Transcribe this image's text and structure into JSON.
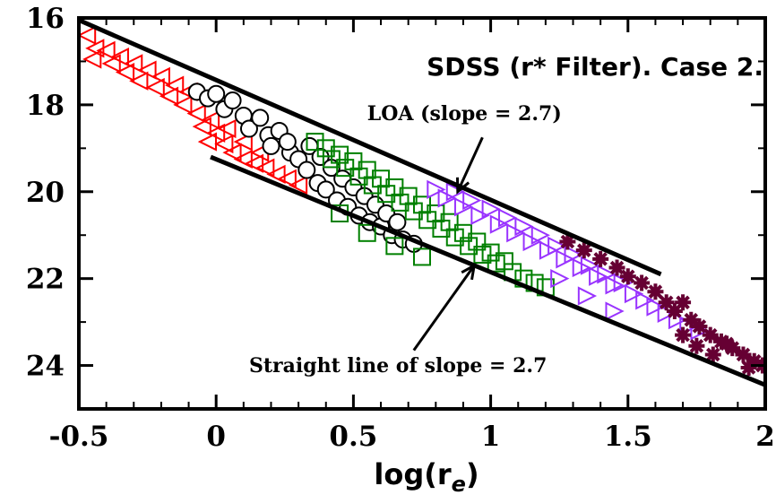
{
  "chart_data": {
    "type": "scatter",
    "title": "SDSS (r* Filter). Case 2.",
    "xlabel": "log(r",
    "xlabel_sub": "e",
    "xlabel_close": ")",
    "ylabel": "",
    "xlim": [
      -0.5,
      2.0
    ],
    "ylim": [
      16,
      25
    ],
    "y_inverted": true,
    "x_ticks": [
      -0.5,
      0,
      0.5,
      1,
      1.5,
      2
    ],
    "x_tick_labels": [
      "-0.5",
      "0",
      "0.5",
      "1",
      "1.5",
      "2"
    ],
    "y_ticks": [
      16,
      18,
      20,
      22,
      24
    ],
    "y_tick_labels": [
      "16",
      "18",
      "20",
      "22",
      "24"
    ],
    "grid": false,
    "lines": [
      {
        "label": "LOA (slope = 2.7)",
        "x": [
          -0.5,
          1.62
        ],
        "y": [
          16.05,
          21.9
        ]
      },
      {
        "label": "Straight line of slope = 2.7",
        "x": [
          -0.02,
          2.0
        ],
        "y": [
          19.2,
          24.45
        ]
      }
    ],
    "annotations": [
      {
        "text": "LOA (slope = 2.7)",
        "x": 0.55,
        "y": 18.35,
        "arrow_to": [
          0.88,
          20.0
        ]
      },
      {
        "text": "Straight line of slope = 2.7",
        "x": 0.12,
        "y": 24.15,
        "arrow_to": [
          0.94,
          21.7
        ]
      }
    ],
    "series": [
      {
        "marker": "triangle-left",
        "color": "#ff0000",
        "points": [
          [
            -0.47,
            16.4
          ],
          [
            -0.44,
            16.7
          ],
          [
            -0.45,
            16.95
          ],
          [
            -0.4,
            16.75
          ],
          [
            -0.38,
            17.05
          ],
          [
            -0.35,
            16.9
          ],
          [
            -0.33,
            17.25
          ],
          [
            -0.3,
            17.05
          ],
          [
            -0.28,
            17.45
          ],
          [
            -0.25,
            17.2
          ],
          [
            -0.22,
            17.6
          ],
          [
            -0.2,
            17.35
          ],
          [
            -0.17,
            17.8
          ],
          [
            -0.15,
            17.55
          ],
          [
            -0.12,
            18.0
          ],
          [
            -0.1,
            17.7
          ],
          [
            -0.07,
            18.2
          ],
          [
            -0.05,
            18.5
          ],
          [
            -0.02,
            18.35
          ],
          [
            0.0,
            18.65
          ],
          [
            0.03,
            18.9
          ],
          [
            -0.03,
            18.85
          ],
          [
            0.06,
            19.1
          ],
          [
            0.1,
            19.25
          ],
          [
            0.14,
            19.35
          ],
          [
            0.18,
            19.45
          ],
          [
            0.22,
            19.6
          ],
          [
            0.26,
            19.7
          ],
          [
            0.3,
            19.85
          ],
          [
            0.04,
            18.55
          ],
          [
            0.1,
            18.85
          ],
          [
            0.16,
            19.1
          ]
        ]
      },
      {
        "marker": "circle",
        "color": "#000000",
        "points": [
          [
            -0.07,
            17.7
          ],
          [
            -0.03,
            17.85
          ],
          [
            0.0,
            17.75
          ],
          [
            0.03,
            18.1
          ],
          [
            0.06,
            17.9
          ],
          [
            0.1,
            18.25
          ],
          [
            0.12,
            18.55
          ],
          [
            0.16,
            18.3
          ],
          [
            0.19,
            18.7
          ],
          [
            0.2,
            18.95
          ],
          [
            0.23,
            18.6
          ],
          [
            0.27,
            19.1
          ],
          [
            0.3,
            19.25
          ],
          [
            0.33,
            19.5
          ],
          [
            0.37,
            19.8
          ],
          [
            0.4,
            19.95
          ],
          [
            0.26,
            18.85
          ],
          [
            0.44,
            20.2
          ],
          [
            0.48,
            20.35
          ],
          [
            0.52,
            20.55
          ],
          [
            0.56,
            20.7
          ],
          [
            0.6,
            20.8
          ],
          [
            0.64,
            21.0
          ],
          [
            0.68,
            21.1
          ],
          [
            0.72,
            21.2
          ],
          [
            0.34,
            18.95
          ],
          [
            0.38,
            19.2
          ],
          [
            0.42,
            19.45
          ],
          [
            0.46,
            19.7
          ],
          [
            0.5,
            19.9
          ],
          [
            0.54,
            20.1
          ],
          [
            0.58,
            20.3
          ],
          [
            0.62,
            20.5
          ],
          [
            0.66,
            20.7
          ]
        ]
      },
      {
        "marker": "square",
        "color": "#008000",
        "points": [
          [
            0.36,
            18.85
          ],
          [
            0.4,
            19.0
          ],
          [
            0.42,
            19.25
          ],
          [
            0.45,
            19.15
          ],
          [
            0.47,
            19.45
          ],
          [
            0.5,
            19.3
          ],
          [
            0.52,
            19.65
          ],
          [
            0.55,
            19.5
          ],
          [
            0.57,
            19.85
          ],
          [
            0.6,
            19.7
          ],
          [
            0.62,
            20.05
          ],
          [
            0.65,
            19.9
          ],
          [
            0.67,
            20.25
          ],
          [
            0.7,
            20.1
          ],
          [
            0.72,
            20.45
          ],
          [
            0.75,
            20.3
          ],
          [
            0.77,
            20.65
          ],
          [
            0.8,
            20.5
          ],
          [
            0.82,
            20.85
          ],
          [
            0.85,
            20.7
          ],
          [
            0.87,
            21.05
          ],
          [
            0.9,
            20.95
          ],
          [
            0.92,
            21.25
          ],
          [
            0.95,
            21.15
          ],
          [
            0.97,
            21.45
          ],
          [
            1.0,
            21.4
          ],
          [
            1.02,
            21.65
          ],
          [
            1.05,
            21.6
          ],
          [
            1.08,
            21.85
          ],
          [
            1.12,
            22.0
          ],
          [
            1.16,
            22.1
          ],
          [
            1.2,
            22.2
          ],
          [
            0.45,
            20.5
          ],
          [
            0.55,
            20.95
          ],
          [
            0.65,
            21.25
          ],
          [
            0.75,
            21.5
          ]
        ]
      },
      {
        "marker": "triangle-right",
        "color": "#9933ff",
        "points": [
          [
            0.8,
            19.95
          ],
          [
            0.84,
            20.15
          ],
          [
            0.87,
            20.0
          ],
          [
            0.9,
            20.35
          ],
          [
            0.93,
            20.2
          ],
          [
            0.96,
            20.55
          ],
          [
            1.0,
            20.4
          ],
          [
            1.03,
            20.75
          ],
          [
            1.06,
            20.6
          ],
          [
            1.09,
            20.95
          ],
          [
            1.12,
            20.8
          ],
          [
            1.15,
            21.15
          ],
          [
            1.18,
            21.0
          ],
          [
            1.21,
            21.35
          ],
          [
            1.24,
            21.25
          ],
          [
            1.27,
            21.55
          ],
          [
            1.3,
            21.45
          ],
          [
            1.33,
            21.75
          ],
          [
            1.36,
            21.7
          ],
          [
            1.39,
            21.95
          ],
          [
            1.42,
            21.9
          ],
          [
            1.45,
            22.15
          ],
          [
            1.48,
            22.1
          ],
          [
            1.52,
            22.35
          ],
          [
            1.56,
            22.5
          ],
          [
            1.6,
            22.65
          ],
          [
            1.64,
            22.8
          ],
          [
            1.68,
            22.95
          ],
          [
            1.72,
            23.1
          ],
          [
            1.76,
            23.2
          ],
          [
            1.25,
            22.0
          ],
          [
            1.35,
            22.4
          ],
          [
            1.45,
            22.75
          ]
        ]
      },
      {
        "marker": "star",
        "color": "#660033",
        "points": [
          [
            1.28,
            21.15
          ],
          [
            1.34,
            21.35
          ],
          [
            1.4,
            21.55
          ],
          [
            1.46,
            21.75
          ],
          [
            1.5,
            21.95
          ],
          [
            1.55,
            22.1
          ],
          [
            1.6,
            22.3
          ],
          [
            1.64,
            22.55
          ],
          [
            1.67,
            22.75
          ],
          [
            1.7,
            22.55
          ],
          [
            1.73,
            22.95
          ],
          [
            1.76,
            23.1
          ],
          [
            1.8,
            23.3
          ],
          [
            1.84,
            23.45
          ],
          [
            1.88,
            23.6
          ],
          [
            1.92,
            23.75
          ],
          [
            1.96,
            23.9
          ],
          [
            1.99,
            24.0
          ],
          [
            1.7,
            23.3
          ],
          [
            1.75,
            23.55
          ],
          [
            1.81,
            23.75
          ],
          [
            1.86,
            23.5
          ],
          [
            1.94,
            24.05
          ]
        ]
      }
    ]
  }
}
